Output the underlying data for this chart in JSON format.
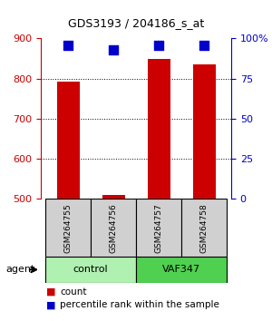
{
  "title": "GDS3193 / 204186_s_at",
  "samples": [
    "GSM264755",
    "GSM264756",
    "GSM264757",
    "GSM264758"
  ],
  "groups": [
    "control",
    "control",
    "VAF347",
    "VAF347"
  ],
  "count_values": [
    793,
    510,
    849,
    836
  ],
  "percentile_values": [
    96,
    93,
    96,
    96
  ],
  "ylim_left": [
    500,
    900
  ],
  "ylim_right": [
    0,
    100
  ],
  "yticks_left": [
    500,
    600,
    700,
    800,
    900
  ],
  "yticks_right": [
    0,
    25,
    50,
    75,
    100
  ],
  "right_tick_labels": [
    "0",
    "25",
    "50",
    "75",
    "100%"
  ],
  "bar_color": "#cc0000",
  "dot_color": "#0000cc",
  "group_colors": {
    "control": "#90ee90",
    "VAF347": "#50c850"
  },
  "group_color_control": "#b0f0b0",
  "group_color_vaf347": "#50d050",
  "left_tick_color": "#cc0000",
  "right_tick_color": "#0000cc",
  "legend_count_color": "#cc0000",
  "legend_pct_color": "#0000cc",
  "bar_width": 0.5,
  "dot_size": 60
}
